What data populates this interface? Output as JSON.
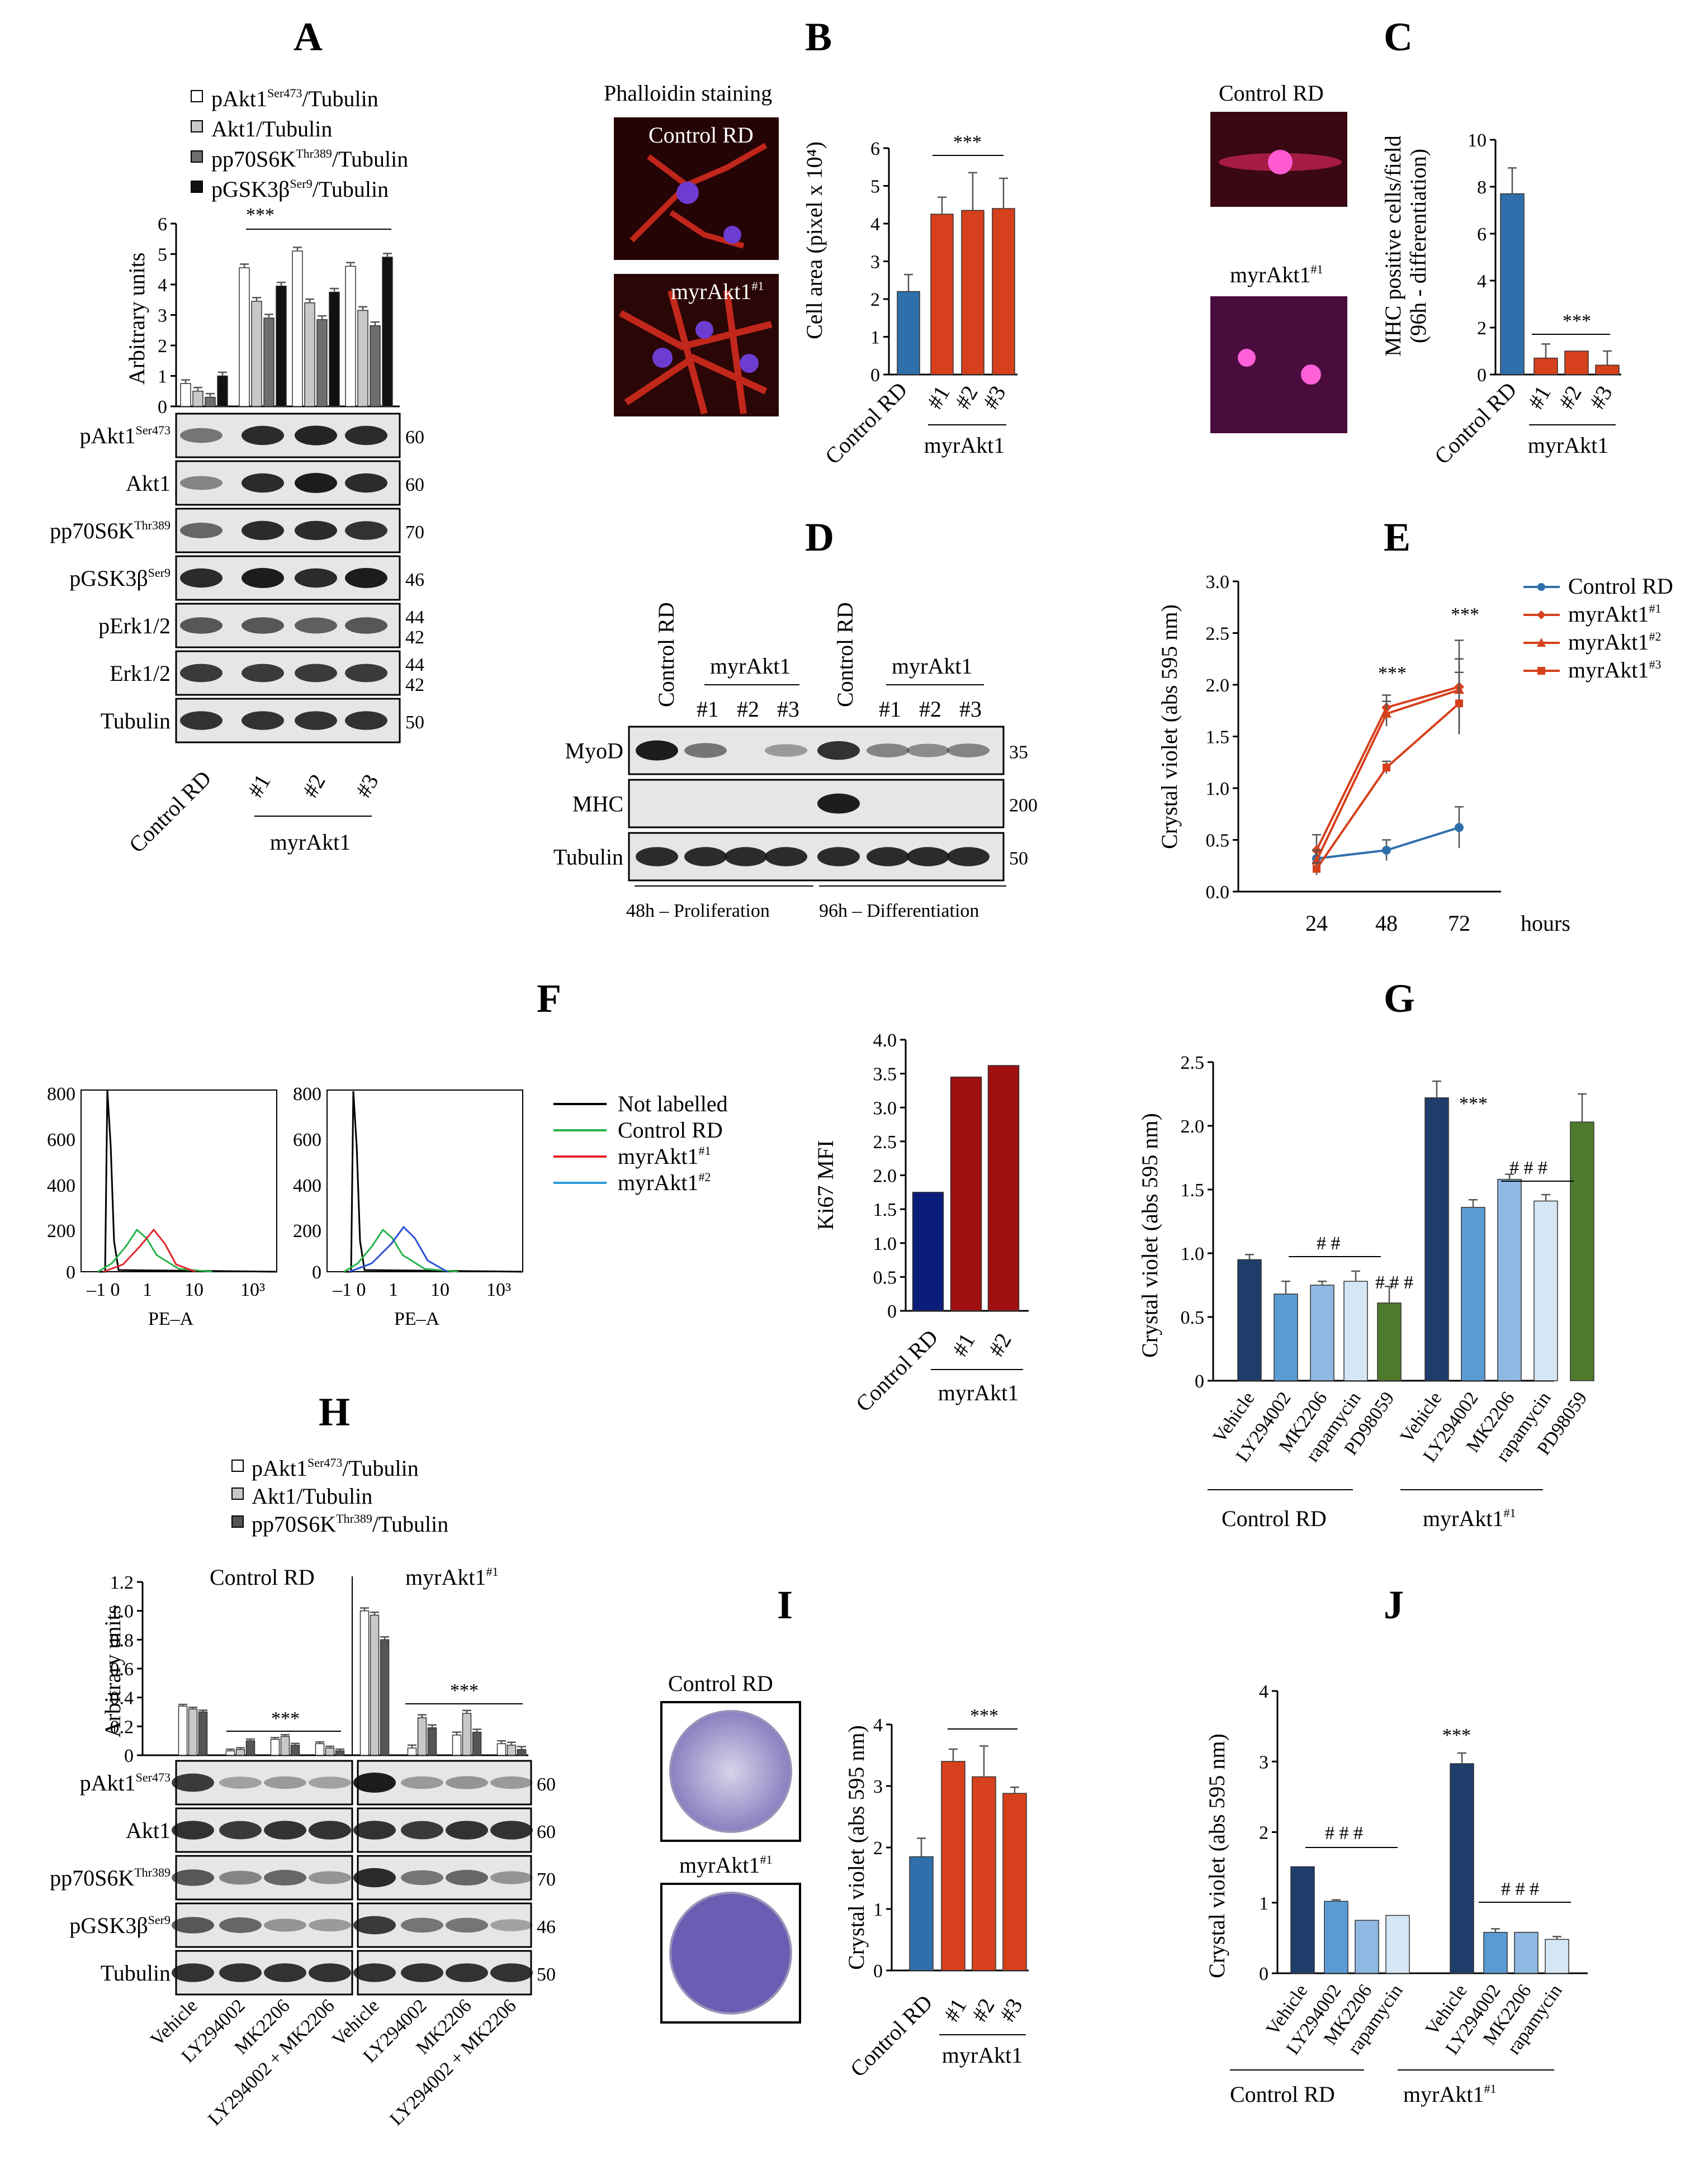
{
  "colors": {
    "ctrl": "#2f6fab",
    "myr": "#d6401c",
    "navy": "#1f3d6b",
    "light1": "#5b9bd5",
    "light2": "#8fb8e2",
    "light3": "#d5e6f5",
    "green": "#4e7a2c",
    "ki_ctrl": "#0b1d7a",
    "ki_myr": "#a01010"
  },
  "panels": [
    "A",
    "B",
    "C",
    "D",
    "E",
    "F",
    "G",
    "H",
    "I",
    "J"
  ],
  "panelA": {
    "legend": [
      {
        "text": "pAkt1",
        "sup": "Ser473",
        "rest": "/Tubulin",
        "color": "#ffffff"
      },
      {
        "text": "Akt1/Tubulin",
        "sup": "",
        "rest": "",
        "color": "#c8c8c8"
      },
      {
        "text": "pp70S6K",
        "sup": "Thr389",
        "rest": "/Tubulin",
        "color": "#6e6e6e"
      },
      {
        "text": "pGSK3β",
        "sup": "Ser9",
        "rest": "/Tubulin",
        "color": "#111111"
      }
    ],
    "ylabel": "Arbitrary units",
    "sig": "***",
    "blots": [
      {
        "name": "pAkt1",
        "sup": "Ser473",
        "mw": "60"
      },
      {
        "name": "Akt1",
        "sup": "",
        "mw": "60"
      },
      {
        "name": "pp70S6K",
        "sup": "Thr389",
        "mw": "70"
      },
      {
        "name": "pGSK3β",
        "sup": "Ser9",
        "mw": "46"
      },
      {
        "name": "pErk1/2",
        "sup": "",
        "mw": "44\n42"
      },
      {
        "name": "Erk1/2",
        "sup": "",
        "mw": "44\n42"
      },
      {
        "name": "Tubulin",
        "sup": "",
        "mw": "50"
      }
    ],
    "xlabels": [
      "Control RD",
      "#1",
      "#2",
      "#3"
    ],
    "group": "myrAkt1"
  },
  "chart_data": [
    {
      "id": "A",
      "type": "bar",
      "title": "",
      "ylabel": "Arbitrary units",
      "ylim": [
        0,
        6
      ],
      "categories": [
        "Control RD",
        "#1",
        "#2",
        "#3"
      ],
      "series": [
        {
          "name": "pAkt1Ser473/Tubulin",
          "values": [
            0.75,
            4.55,
            5.1,
            4.6
          ]
        },
        {
          "name": "Akt1/Tubulin",
          "values": [
            0.5,
            3.45,
            3.4,
            3.15
          ]
        },
        {
          "name": "pp70S6KThr389/Tubulin",
          "values": [
            0.3,
            2.9,
            2.85,
            2.65
          ]
        },
        {
          "name": "pGSK3βSer9/Tubulin",
          "values": [
            1.0,
            3.95,
            3.75,
            4.9
          ]
        }
      ]
    },
    {
      "id": "B",
      "type": "bar",
      "ylabel": "Cell area (pixel x 10⁴)",
      "ylim": [
        0,
        6
      ],
      "categories": [
        "Control RD",
        "#1",
        "#2",
        "#3"
      ],
      "values": [
        2.2,
        4.25,
        4.35,
        4.4
      ],
      "errors": [
        0.45,
        0.45,
        1.0,
        0.8
      ]
    },
    {
      "id": "C",
      "type": "bar",
      "ylabel": "MHC positive cells/field (96h - differentiation)",
      "ylim": [
        0,
        10
      ],
      "categories": [
        "Control RD",
        "#1",
        "#2",
        "#3"
      ],
      "values": [
        7.7,
        0.7,
        1.0,
        0.4
      ],
      "errors": [
        1.1,
        0.6,
        0,
        0.6
      ]
    },
    {
      "id": "E",
      "type": "line",
      "ylabel": "Crystal violet (abs 595 nm)",
      "xlabel": "hours",
      "ylim": [
        0,
        3.0
      ],
      "x": [
        24,
        48,
        72
      ],
      "series": [
        {
          "name": "Control RD",
          "values": [
            0.32,
            0.4,
            0.62
          ],
          "errors": [
            0.08,
            0.1,
            0.2
          ]
        },
        {
          "name": "myrAkt1#1",
          "values": [
            0.4,
            1.78,
            1.98
          ],
          "errors": [
            0.15,
            0.12,
            0.45
          ]
        },
        {
          "name": "myrAkt1#2",
          "values": [
            0.3,
            1.72,
            1.95
          ],
          "errors": [
            0.1,
            0.12,
            0.3
          ]
        },
        {
          "name": "myrAkt1#3",
          "values": [
            0.22,
            1.2,
            1.82
          ],
          "errors": [
            0.06,
            0.06,
            0.3
          ]
        }
      ]
    },
    {
      "id": "F",
      "type": "bar",
      "ylabel": "Ki67 MFI",
      "ylim": [
        0,
        4.0
      ],
      "categories": [
        "Control RD",
        "#1",
        "#2"
      ],
      "values": [
        1.75,
        3.45,
        3.62
      ]
    },
    {
      "id": "G",
      "type": "bar",
      "ylabel": "Crystal violet (abs 595 nm)",
      "ylim": [
        0,
        2.5
      ],
      "groups": [
        "Control RD",
        "myrAkt1#1"
      ],
      "categories": [
        "Vehicle",
        "LY294002",
        "MK2206",
        "rapamycin",
        "PD98059"
      ],
      "series": [
        {
          "name": "Control RD",
          "values": [
            0.95,
            0.68,
            0.75,
            0.78,
            0.61
          ],
          "errors": [
            0.04,
            0.1,
            0.03,
            0.08,
            0.13
          ]
        },
        {
          "name": "myrAkt1#1",
          "values": [
            2.22,
            1.36,
            1.58,
            1.41,
            2.03
          ],
          "errors": [
            0.13,
            0.06,
            0.04,
            0.05,
            0.22
          ]
        }
      ]
    },
    {
      "id": "H",
      "type": "bar",
      "ylabel": "Arbitrary units",
      "ylim": [
        0,
        1.2
      ],
      "categories": [
        "Vehicle",
        "LY294002",
        "MK2206",
        "LY294002 + MK2206"
      ],
      "series": [
        {
          "name": "Control RD pAkt1Ser473/Tubulin",
          "values": [
            0.34,
            0.03,
            0.11,
            0.08
          ]
        },
        {
          "name": "Control RD Akt1/Tubulin",
          "values": [
            0.32,
            0.04,
            0.13,
            0.05
          ]
        },
        {
          "name": "Control RD pp70S6KThr389/Tubulin",
          "values": [
            0.3,
            0.1,
            0.07,
            0.03
          ]
        },
        {
          "name": "myrAkt1#1 pAkt1Ser473/Tubulin",
          "values": [
            1.0,
            0.05,
            0.14,
            0.08
          ]
        },
        {
          "name": "myrAkt1#1 Akt1/Tubulin",
          "values": [
            0.97,
            0.26,
            0.29,
            0.07
          ]
        },
        {
          "name": "myrAkt1#1 pp70S6KThr389/Tubulin",
          "values": [
            0.8,
            0.19,
            0.16,
            0.04
          ]
        }
      ]
    },
    {
      "id": "I",
      "type": "bar",
      "ylabel": "Crystal violet (abs 595 nm)",
      "ylim": [
        0,
        4
      ],
      "categories": [
        "Control RD",
        "#1",
        "#2",
        "#3"
      ],
      "values": [
        1.85,
        3.4,
        3.15,
        2.88
      ],
      "errors": [
        0.3,
        0.2,
        0.5,
        0.1
      ]
    },
    {
      "id": "J",
      "type": "bar",
      "ylabel": "Crystal violet (abs 595 nm)",
      "ylim": [
        0,
        4
      ],
      "groups": [
        "Control RD",
        "myrAkt1#1"
      ],
      "categories": [
        "Vehicle",
        "LY294002",
        "MK2206",
        "rapamycin"
      ],
      "series": [
        {
          "name": "Control RD",
          "values": [
            1.51,
            1.02,
            0.75,
            0.82
          ],
          "errors": [
            0,
            0.02,
            0,
            0
          ]
        },
        {
          "name": "myrAkt1#1",
          "values": [
            2.97,
            0.58,
            0.58,
            0.48
          ],
          "errors": [
            0.15,
            0.05,
            0,
            0.04
          ]
        }
      ]
    }
  ],
  "panelB": {
    "caption": "Phalloidin staining",
    "img1": "Control RD",
    "img2": "myrAkt1",
    "img2sup": "#1",
    "sig": "***",
    "group": "myrAkt1"
  },
  "panelC": {
    "img1": "Control RD",
    "img2": "myrAkt1",
    "img2sup": "#1",
    "sig": "***",
    "group": "myrAkt1"
  },
  "panelD": {
    "lanes_left": [
      "Control RD"
    ],
    "group": "myrAkt1",
    "clones": [
      "#1",
      "#2",
      "#3"
    ],
    "rows": [
      {
        "name": "MyoD",
        "mw": "35"
      },
      {
        "name": "MHC",
        "mw": "200"
      },
      {
        "name": "Tubulin",
        "mw": "50"
      }
    ],
    "bottom1": "48h – Proliferation",
    "bottom2": "96h – Differentiation"
  },
  "panelE": {
    "sig1": "***",
    "sig2": "***",
    "legend": [
      {
        "t": "Control RD",
        "s": ""
      },
      {
        "t": "myrAkt1",
        "s": "#1"
      },
      {
        "t": "myrAkt1",
        "s": "#2"
      },
      {
        "t": "myrAkt1",
        "s": "#3"
      }
    ]
  },
  "panelF": {
    "legend": [
      "Not labelled",
      "Control RD",
      "myrAkt1",
      "myrAkt1"
    ],
    "legend_sup": [
      "",
      "",
      "#1",
      "#2"
    ],
    "xlabel": "PE–A",
    "yticks": [
      "800",
      "600",
      "400",
      "200",
      "0"
    ],
    "xticks": [
      "–1 0",
      "1",
      "10",
      "10³"
    ],
    "group": "myrAkt1"
  },
  "panelG": {
    "sig": "***",
    "h1": "# #",
    "h2": "# # #",
    "h3": "# # #",
    "group1": "Control RD",
    "group2": "myrAkt1",
    "group2sup": "#1"
  },
  "panelH": {
    "legend": [
      {
        "t": "pAkt1",
        "s": "Ser473",
        "r": "/Tubulin"
      },
      {
        "t": "Akt1/Tubulin",
        "s": "",
        "r": ""
      },
      {
        "t": "pp70S6K",
        "s": "Thr389",
        "r": "/Tubulin"
      }
    ],
    "sub1": "Control RD",
    "sub2": "myrAkt1",
    "sub2sup": "#1",
    "sig": "***",
    "blots": [
      {
        "name": "pAkt1",
        "sup": "Ser473",
        "mw": "60"
      },
      {
        "name": "Akt1",
        "sup": "",
        "mw": "60"
      },
      {
        "name": "pp70S6K",
        "sup": "Thr389",
        "mw": "70"
      },
      {
        "name": "pGSK3β",
        "sup": "Ser9",
        "mw": "46"
      },
      {
        "name": "Tubulin",
        "sup": "",
        "mw": "50"
      }
    ]
  },
  "panelI": {
    "img1": "Control RD",
    "img2": "myrAkt1",
    "img2sup": "#1",
    "sig": "***",
    "group": "myrAkt1"
  },
  "panelJ": {
    "sig": "***",
    "h1": "# # #",
    "h2": "# # #",
    "group1": "Control RD",
    "group2": "myrAkt1",
    "group2sup": "#1"
  }
}
